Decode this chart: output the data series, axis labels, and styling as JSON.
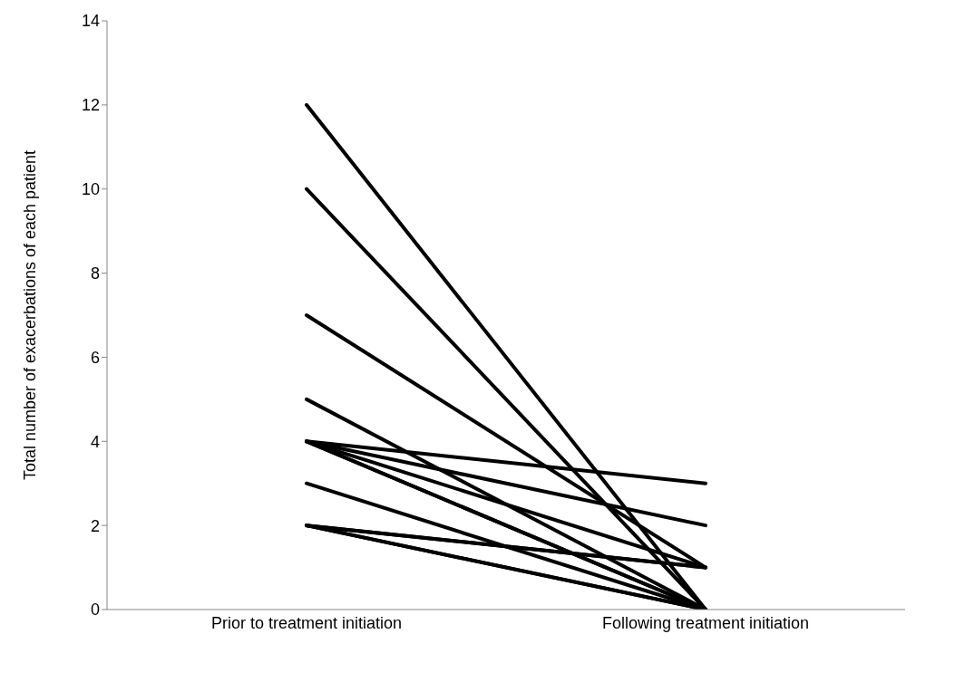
{
  "chart_data": {
    "type": "line",
    "ylabel": "Total number of exacerbations of each patient",
    "categories": [
      "Prior to treatment initiation",
      "Following treatment initiation"
    ],
    "ylim": [
      0,
      14
    ],
    "yticks": [
      0,
      2,
      4,
      6,
      8,
      10,
      12,
      14
    ],
    "grid": false,
    "marker": "none",
    "line_style": "solid",
    "series": [
      {
        "color": "#000000",
        "values": [
          12,
          0
        ]
      },
      {
        "color": "#000000",
        "values": [
          10,
          0
        ]
      },
      {
        "color": "#000000",
        "values": [
          7,
          1
        ]
      },
      {
        "color": "#000000",
        "values": [
          5,
          0
        ]
      },
      {
        "color": "#000000",
        "values": [
          4,
          3
        ]
      },
      {
        "color": "#000000",
        "values": [
          4,
          2
        ]
      },
      {
        "color": "#000000",
        "values": [
          4,
          1
        ]
      },
      {
        "color": "#000000",
        "values": [
          4,
          0
        ]
      },
      {
        "color": "#000000",
        "values": [
          4,
          0
        ]
      },
      {
        "color": "#000000",
        "values": [
          3,
          0
        ]
      },
      {
        "color": "#000000",
        "values": [
          2,
          1
        ]
      },
      {
        "color": "#000000",
        "values": [
          2,
          1
        ]
      },
      {
        "color": "#000000",
        "values": [
          2,
          0
        ]
      },
      {
        "color": "#000000",
        "values": [
          2,
          0
        ]
      }
    ]
  }
}
